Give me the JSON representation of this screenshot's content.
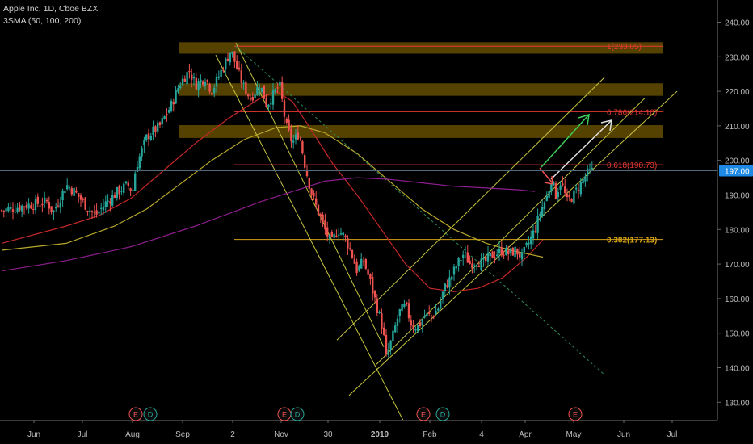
{
  "header": {
    "title": "Apple Inc, 1D, Cboe BZX",
    "indicator": "3SMA (50, 100, 200)"
  },
  "colors": {
    "background": "#000000",
    "up": "#26a69a",
    "down": "#ef5350",
    "sma50": "#c62828",
    "sma100": "#b8a82a",
    "sma200": "#8e1e8e",
    "fib": "#e53935",
    "fib382": "#d4a017",
    "zone": "#6b5200",
    "channel": "#c7c740",
    "price_badge": "#1e88e5"
  },
  "chart_data": {
    "type": "candlestick",
    "title": "Apple Inc, 1D, Cboe BZX",
    "ylim": [
      124,
      246
    ],
    "y_ticks": [
      "240.00",
      "230.00",
      "220.00",
      "210.00",
      "200.00",
      "190.00",
      "180.00",
      "170.00",
      "160.00",
      "150.00",
      "140.00",
      "130.00"
    ],
    "y_tick_values": [
      240,
      230,
      220,
      210,
      200,
      190,
      180,
      170,
      160,
      150,
      140,
      130
    ],
    "x_ticks": [
      {
        "label": "Jun",
        "day": 0
      },
      {
        "label": "Jul",
        "day": 30
      },
      {
        "label": "Aug",
        "day": 61
      },
      {
        "label": "Sep",
        "day": 92
      },
      {
        "label": "2",
        "day": 123
      },
      {
        "label": "Nov",
        "day": 153
      },
      {
        "label": "30",
        "day": 182
      },
      {
        "label": "2019",
        "day": 214
      },
      {
        "label": "Feb",
        "day": 245
      },
      {
        "label": "4",
        "day": 277
      },
      {
        "label": "Apr",
        "day": 304
      },
      {
        "label": "May",
        "day": 334
      },
      {
        "label": "Jun",
        "day": 365
      },
      {
        "label": "Jul",
        "day": 395
      }
    ],
    "last_price": "197.00",
    "last_price_value": 197,
    "anchors": [
      [
        -20,
        185.5
      ],
      [
        -5,
        187
      ],
      [
        8,
        188
      ],
      [
        12,
        185
      ],
      [
        20,
        193
      ],
      [
        25,
        191
      ],
      [
        32,
        187
      ],
      [
        38,
        184
      ],
      [
        45,
        188
      ],
      [
        52,
        191
      ],
      [
        58,
        193
      ],
      [
        61,
        191
      ],
      [
        63,
        198
      ],
      [
        70,
        207
      ],
      [
        78,
        210
      ],
      [
        85,
        216
      ],
      [
        90,
        222
      ],
      [
        96,
        226
      ],
      [
        100,
        222
      ],
      [
        106,
        224
      ],
      [
        110,
        220
      ],
      [
        114,
        224
      ],
      [
        118,
        228
      ],
      [
        122,
        232
      ],
      [
        126,
        226
      ],
      [
        130,
        221
      ],
      [
        134,
        218
      ],
      [
        140,
        222
      ],
      [
        144,
        216
      ],
      [
        148,
        219
      ],
      [
        152,
        222
      ],
      [
        156,
        210
      ],
      [
        160,
        205
      ],
      [
        164,
        208
      ],
      [
        168,
        198
      ],
      [
        172,
        190
      ],
      [
        176,
        185
      ],
      [
        180,
        180
      ],
      [
        184,
        176
      ],
      [
        188,
        180
      ],
      [
        192,
        178
      ],
      [
        196,
        174
      ],
      [
        200,
        168
      ],
      [
        204,
        171
      ],
      [
        208,
        165
      ],
      [
        212,
        158
      ],
      [
        216,
        151
      ],
      [
        218,
        143
      ],
      [
        222,
        149
      ],
      [
        226,
        156
      ],
      [
        230,
        158
      ],
      [
        234,
        152
      ],
      [
        238,
        152
      ],
      [
        242,
        155
      ],
      [
        246,
        155
      ],
      [
        250,
        157
      ],
      [
        254,
        163
      ],
      [
        258,
        166
      ],
      [
        262,
        170
      ],
      [
        266,
        173
      ],
      [
        270,
        170
      ],
      [
        274,
        171
      ],
      [
        278,
        170
      ],
      [
        282,
        172
      ],
      [
        286,
        173
      ],
      [
        290,
        174
      ],
      [
        294,
        173
      ],
      [
        298,
        174
      ],
      [
        302,
        172
      ],
      [
        306,
        176
      ],
      [
        310,
        180
      ],
      [
        314,
        186
      ],
      [
        318,
        190
      ],
      [
        320,
        195
      ],
      [
        323,
        190
      ],
      [
        326,
        194
      ],
      [
        330,
        188
      ],
      [
        334,
        190
      ],
      [
        338,
        193
      ],
      [
        342,
        196
      ],
      [
        346,
        197
      ]
    ],
    "series": [
      {
        "name": "SMA 50",
        "color": "#c62828",
        "points": [
          [
            -20,
            176
          ],
          [
            20,
            181
          ],
          [
            40,
            184
          ],
          [
            60,
            189
          ],
          [
            80,
            197
          ],
          [
            100,
            205
          ],
          [
            120,
            212
          ],
          [
            140,
            218
          ],
          [
            150,
            220
          ],
          [
            160,
            217
          ],
          [
            170,
            210
          ],
          [
            185,
            199
          ],
          [
            200,
            190
          ],
          [
            215,
            180
          ],
          [
            230,
            170
          ],
          [
            245,
            163
          ],
          [
            260,
            162
          ],
          [
            275,
            163
          ],
          [
            290,
            166
          ],
          [
            305,
            172
          ],
          [
            315,
            177
          ]
        ]
      },
      {
        "name": "SMA 100",
        "color": "#b8a82a",
        "points": [
          [
            -20,
            174
          ],
          [
            20,
            176
          ],
          [
            50,
            181
          ],
          [
            70,
            186
          ],
          [
            90,
            193
          ],
          [
            110,
            200
          ],
          [
            130,
            206
          ],
          [
            150,
            209.5
          ],
          [
            165,
            210
          ],
          [
            180,
            208
          ],
          [
            200,
            202
          ],
          [
            220,
            194
          ],
          [
            240,
            186
          ],
          [
            260,
            180
          ],
          [
            280,
            176
          ],
          [
            295,
            174
          ],
          [
            305,
            173
          ],
          [
            315,
            172
          ]
        ]
      },
      {
        "name": "SMA 200",
        "color": "#8e1e8e",
        "points": [
          [
            -20,
            168
          ],
          [
            20,
            171
          ],
          [
            60,
            175
          ],
          [
            100,
            181
          ],
          [
            140,
            188
          ],
          [
            180,
            194
          ],
          [
            200,
            195
          ],
          [
            220,
            194.5
          ],
          [
            240,
            193.5
          ],
          [
            260,
            192.5
          ],
          [
            280,
            192
          ],
          [
            300,
            191.5
          ],
          [
            310,
            191
          ]
        ]
      }
    ],
    "fib_levels": [
      {
        "label": "1(233.05)",
        "value": 233.05
      },
      {
        "label": "0.786(214.10)",
        "value": 214.1
      },
      {
        "label": "0.618(198.73)",
        "value": 198.73
      },
      {
        "label": "0.382(177.13)",
        "value": 177.13
      }
    ],
    "zones": [
      {
        "low": 230.9,
        "high": 234.2
      },
      {
        "low": 218.7,
        "high": 222.3
      },
      {
        "low": 206.5,
        "high": 210.2
      }
    ],
    "events": [
      {
        "label": "E",
        "day": 63,
        "kind": "earnings"
      },
      {
        "label": "D",
        "day": 72,
        "kind": "dividend"
      },
      {
        "label": "E",
        "day": 155,
        "kind": "earnings"
      },
      {
        "label": "D",
        "day": 163,
        "kind": "dividend"
      },
      {
        "label": "E",
        "day": 241,
        "kind": "earnings"
      },
      {
        "label": "D",
        "day": 253,
        "kind": "dividend"
      },
      {
        "label": "E",
        "day": 335,
        "kind": "earnings"
      }
    ]
  }
}
